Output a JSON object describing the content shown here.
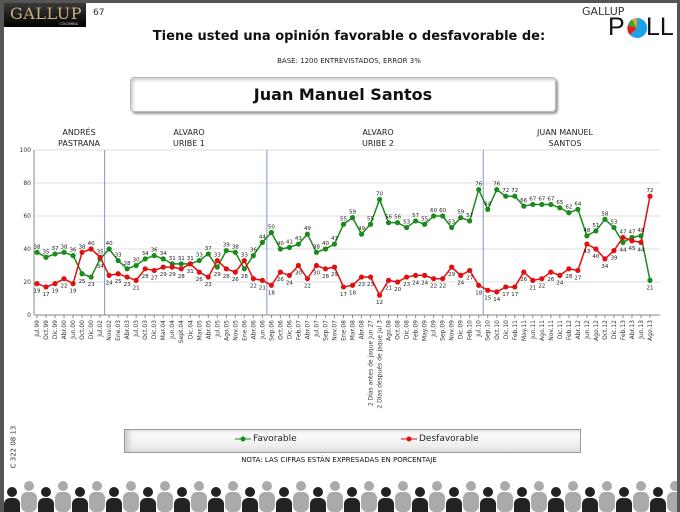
{
  "header": {
    "logo_text": "GALLUP",
    "logo_sub": "COLOMBIA",
    "page_number": "67",
    "poll_logo_top": "GALLUP",
    "poll_logo_p": "P",
    "poll_logo_ll": "LL",
    "title": "Tiene usted una opinión favorable o desfavorable de:",
    "base": "BASE: 1200 ENTREVISTADOS, ERROR 3%",
    "person": "Juan Manuel Santos"
  },
  "sections": [
    {
      "line1": "ANDRÉS",
      "line2": "PASTRANA"
    },
    {
      "line1": "ALVARO",
      "line2": "URIBE 1"
    },
    {
      "line1": "ALVARO",
      "line2": "URIBE 2"
    },
    {
      "line1": "JUAN MANUEL",
      "line2": "SANTOS"
    }
  ],
  "note": "NOTA: LAS CIFRAS ESTÁN EXPRESADAS EN PORCENTAJE",
  "side_code": "C 322 08 13",
  "colors": {
    "favorable": "#1a8a1a",
    "desfavorable": "#e01010",
    "divider": "#7a9cc8"
  },
  "chart_data": {
    "type": "line",
    "ylim": [
      0,
      100
    ],
    "yticks": [
      "0",
      "20",
      "40",
      "60",
      "80",
      "100"
    ],
    "grid": true,
    "legend": "bottom",
    "categories": [
      "Jul.99",
      "Oct.99",
      "Dic.99",
      "Abr.00",
      "Jun.00",
      "Oct.00",
      "Dic.00",
      "Jul.02",
      "Nov.02",
      "Ene.03",
      "Abr.03",
      "Jul.03",
      "Oct.03",
      "Dic.03",
      "Mar.04",
      "Jun.04",
      "Sept.04",
      "Dic.04",
      "Mar.05",
      "Abr.05",
      "Jul.05",
      "Ago.05",
      "Nov.05",
      "Ene.06",
      "Abr.06",
      "Jun.06",
      "Sep.06",
      "Oct.06",
      "Dic.06",
      "Feb.07",
      "Abr.07",
      "Jul.07",
      "Sep.07",
      "Nov.07",
      "Ene.08",
      "Mar.08",
      "Abr.08",
      "2 Días antes de jaque Jun 27",
      "2 Días después de jaque Jul 3",
      "Ago.08",
      "Oct.08",
      "Dic.08",
      "Feb.09",
      "May.09",
      "Jul.09",
      "Sep.09",
      "Nov.09",
      "Dic.09",
      "Feb.10",
      "Jul.10",
      "Sep.10",
      "Oct.10",
      "Dic.10",
      "Feb.11",
      "May.11",
      "Jun.11",
      "Ago.11",
      "Nov.11",
      "Dic.11",
      "Feb.12",
      "Abr.12",
      "Jun.12",
      "Ago.12",
      "Oct.12",
      "Dic.12",
      "Feb.13",
      "Abr.13",
      "Jun.13",
      "Ago.13"
    ],
    "series": [
      {
        "name": "Favorable",
        "values": [
          38,
          35,
          37,
          38,
          36,
          25,
          23,
          34,
          40,
          33,
          28,
          30,
          34,
          36,
          34,
          31,
          31,
          31,
          33,
          37,
          29,
          39,
          38,
          28,
          36,
          44,
          50,
          40,
          41,
          43,
          49,
          38,
          40,
          43,
          55,
          59,
          49,
          55,
          70,
          56,
          56,
          53,
          57,
          55,
          60,
          60,
          53,
          59,
          57,
          76,
          64,
          76,
          72,
          72,
          66,
          67,
          67,
          67,
          65,
          62,
          64,
          48,
          51,
          58,
          53,
          44,
          47,
          48,
          21
        ]
      },
      {
        "name": "Desfavorable",
        "values": [
          19,
          17,
          19,
          22,
          19,
          38,
          40,
          35,
          24,
          25,
          23,
          21,
          28,
          27,
          29,
          29,
          28,
          31,
          26,
          23,
          33,
          28,
          26,
          33,
          22,
          21,
          18,
          26,
          24,
          30,
          22,
          30,
          28,
          29,
          17,
          18,
          23,
          23,
          12,
          21,
          20,
          23,
          24,
          24,
          22,
          22,
          29,
          24,
          27,
          18,
          15,
          14,
          17,
          17,
          26,
          21,
          22,
          26,
          24,
          28,
          27,
          43,
          40,
          34,
          39,
          47,
          45,
          44,
          72
        ]
      }
    ],
    "period_breaks_after": [
      "Jul.02",
      "Jun.06",
      "Jul.10"
    ]
  }
}
